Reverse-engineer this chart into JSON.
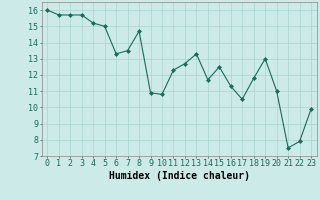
{
  "x": [
    0,
    1,
    2,
    3,
    4,
    5,
    6,
    7,
    8,
    9,
    10,
    11,
    12,
    13,
    14,
    15,
    16,
    17,
    18,
    19,
    20,
    21,
    22,
    23
  ],
  "y": [
    16.0,
    15.7,
    15.7,
    15.7,
    15.2,
    15.0,
    13.3,
    13.5,
    14.7,
    10.9,
    10.8,
    12.3,
    12.7,
    13.3,
    11.7,
    12.5,
    11.3,
    10.5,
    11.8,
    13.0,
    11.0,
    7.5,
    7.9,
    9.9
  ],
  "xlabel": "Humidex (Indice chaleur)",
  "ylim": [
    7,
    16.5
  ],
  "xlim": [
    -0.5,
    23.5
  ],
  "yticks": [
    7,
    8,
    9,
    10,
    11,
    12,
    13,
    14,
    15,
    16
  ],
  "xticks": [
    0,
    1,
    2,
    3,
    4,
    5,
    6,
    7,
    8,
    9,
    10,
    11,
    12,
    13,
    14,
    15,
    16,
    17,
    18,
    19,
    20,
    21,
    22,
    23
  ],
  "line_color": "#1a6b5a",
  "marker": "D",
  "marker_size": 2,
  "bg_color": "#cceae7",
  "grid_color": "#aad4d0",
  "tick_fontsize": 6,
  "xlabel_fontsize": 7
}
